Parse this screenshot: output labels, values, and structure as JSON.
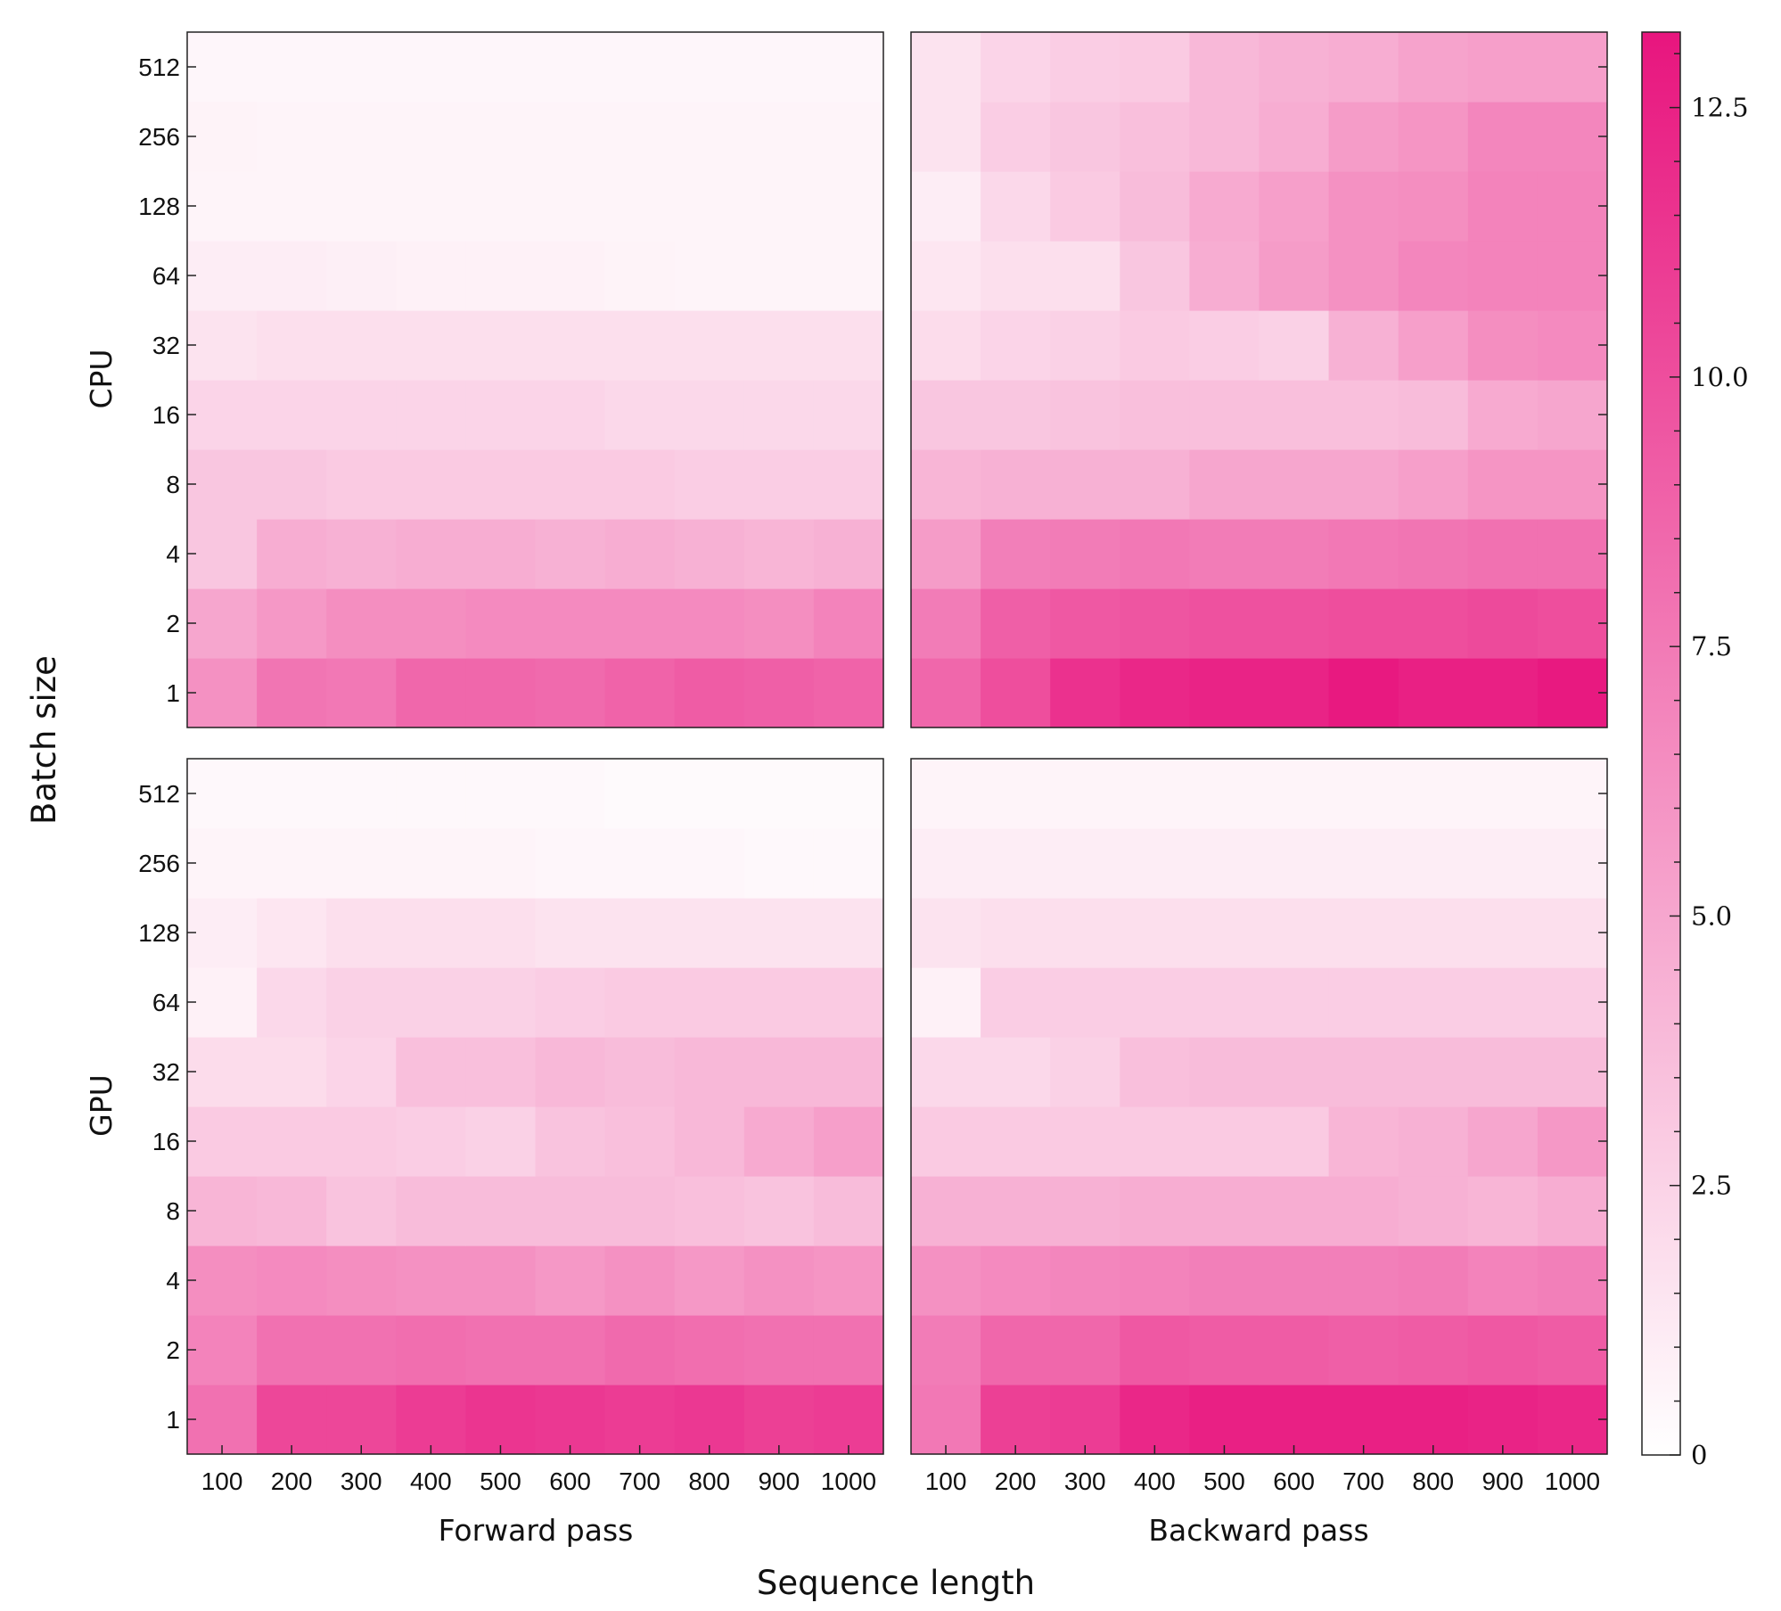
{
  "chart_data": {
    "type": "heatmap",
    "x_label": "Sequence length",
    "y_label": "Batch size",
    "column_labels": [
      "Forward pass",
      "Backward pass"
    ],
    "row_labels": [
      "CPU",
      "GPU"
    ],
    "x_categories": [
      "100",
      "200",
      "300",
      "400",
      "500",
      "600",
      "700",
      "800",
      "900",
      "1000"
    ],
    "y_categories": [
      "1",
      "2",
      "4",
      "8",
      "16",
      "32",
      "64",
      "128",
      "256",
      "512"
    ],
    "colorbar": {
      "min": 0,
      "max": 13.2,
      "ticks": [
        0,
        2.5,
        5.0,
        7.5,
        10.0,
        12.5
      ],
      "tick_labels": [
        "0",
        "2.5",
        "5.0",
        "7.5",
        "10.0",
        "12.5"
      ],
      "color_low": "#ffffff",
      "color_high": "#e8157e"
    },
    "panels": [
      {
        "row": "CPU",
        "column": "Forward pass",
        "values_by_batch": [
          [
            6.2,
            7.8,
            7.6,
            8.6,
            8.6,
            8.4,
            8.8,
            9.2,
            9.0,
            8.8
          ],
          [
            5.0,
            5.8,
            6.4,
            6.4,
            6.6,
            6.6,
            6.6,
            6.6,
            6.4,
            7.0
          ],
          [
            3.2,
            4.6,
            4.4,
            4.6,
            4.6,
            4.4,
            4.6,
            4.4,
            4.2,
            4.4
          ],
          [
            3.2,
            3.2,
            3.0,
            3.0,
            3.0,
            3.0,
            3.0,
            2.8,
            2.8,
            2.8
          ],
          [
            2.4,
            2.4,
            2.4,
            2.4,
            2.4,
            2.4,
            2.2,
            2.2,
            2.2,
            2.2
          ],
          [
            1.6,
            1.8,
            1.8,
            1.8,
            1.8,
            1.8,
            1.8,
            1.8,
            1.8,
            1.8
          ],
          [
            1.0,
            1.0,
            0.9,
            0.8,
            0.8,
            0.8,
            0.7,
            0.6,
            0.6,
            0.6
          ],
          [
            0.6,
            0.6,
            0.6,
            0.6,
            0.6,
            0.6,
            0.6,
            0.6,
            0.6,
            0.6
          ],
          [
            0.7,
            0.6,
            0.6,
            0.6,
            0.6,
            0.6,
            0.6,
            0.6,
            0.6,
            0.6
          ],
          [
            0.5,
            0.5,
            0.5,
            0.5,
            0.5,
            0.5,
            0.5,
            0.5,
            0.5,
            0.5
          ]
        ]
      },
      {
        "row": "CPU",
        "column": "Backward pass",
        "values_by_batch": [
          [
            8.6,
            10.0,
            11.6,
            12.2,
            12.4,
            12.4,
            13.0,
            12.6,
            12.6,
            13.0
          ],
          [
            7.4,
            9.0,
            9.4,
            9.6,
            9.8,
            9.8,
            10.0,
            10.0,
            10.2,
            10.0
          ],
          [
            5.6,
            7.2,
            7.4,
            7.6,
            7.4,
            7.4,
            7.6,
            7.8,
            8.0,
            8.0
          ],
          [
            4.2,
            4.4,
            4.4,
            4.4,
            5.0,
            5.0,
            5.0,
            5.4,
            6.0,
            6.0
          ],
          [
            3.2,
            3.2,
            3.4,
            3.6,
            3.6,
            3.6,
            3.6,
            3.8,
            4.8,
            5.0
          ],
          [
            2.0,
            2.4,
            2.6,
            3.0,
            2.8,
            2.6,
            4.4,
            5.4,
            6.4,
            6.6
          ],
          [
            1.4,
            1.8,
            1.8,
            3.2,
            4.6,
            5.6,
            6.2,
            6.8,
            7.0,
            7.0
          ],
          [
            1.0,
            2.2,
            3.0,
            3.8,
            4.8,
            5.4,
            6.2,
            6.4,
            7.0,
            7.0
          ],
          [
            1.6,
            2.8,
            3.2,
            3.6,
            4.0,
            4.6,
            5.6,
            6.0,
            6.8,
            6.8
          ],
          [
            1.6,
            2.4,
            2.8,
            3.0,
            4.0,
            4.4,
            4.6,
            5.2,
            5.4,
            5.4
          ]
        ]
      },
      {
        "row": "GPU",
        "column": "Forward pass",
        "values_by_batch": [
          [
            8.0,
            10.4,
            10.4,
            11.0,
            11.4,
            11.2,
            11.0,
            11.2,
            10.8,
            11.0
          ],
          [
            7.0,
            8.0,
            8.0,
            8.2,
            8.0,
            8.0,
            8.4,
            8.2,
            8.0,
            8.0
          ],
          [
            6.4,
            6.6,
            6.4,
            6.2,
            6.2,
            5.8,
            6.2,
            5.8,
            6.2,
            6.0
          ],
          [
            4.2,
            4.0,
            3.4,
            3.8,
            3.8,
            3.8,
            3.8,
            3.6,
            3.4,
            3.8
          ],
          [
            3.0,
            3.0,
            3.0,
            2.8,
            2.6,
            3.4,
            3.6,
            4.0,
            4.8,
            5.4
          ],
          [
            2.0,
            2.0,
            2.4,
            3.6,
            3.6,
            4.0,
            3.8,
            4.0,
            4.0,
            4.0
          ],
          [
            0.8,
            2.2,
            2.6,
            2.6,
            2.6,
            2.8,
            3.0,
            3.0,
            3.0,
            3.0
          ],
          [
            1.0,
            1.4,
            1.8,
            1.8,
            1.8,
            1.6,
            1.6,
            1.6,
            1.6,
            1.6
          ],
          [
            0.6,
            0.6,
            0.6,
            0.6,
            0.6,
            0.5,
            0.5,
            0.5,
            0.4,
            0.4
          ],
          [
            0.4,
            0.4,
            0.4,
            0.4,
            0.4,
            0.4,
            0.3,
            0.3,
            0.3,
            0.3
          ]
        ]
      },
      {
        "row": "GPU",
        "column": "Backward pass",
        "values_by_batch": [
          [
            7.6,
            10.8,
            11.0,
            12.2,
            12.6,
            12.6,
            12.6,
            12.6,
            12.4,
            12.2
          ],
          [
            7.4,
            8.6,
            8.6,
            9.4,
            9.2,
            9.2,
            9.0,
            9.2,
            9.4,
            9.2
          ],
          [
            6.2,
            6.6,
            6.8,
            7.0,
            7.2,
            7.2,
            7.2,
            7.4,
            7.0,
            7.2
          ],
          [
            4.4,
            4.4,
            4.4,
            4.6,
            4.6,
            4.6,
            4.6,
            4.4,
            4.2,
            4.6
          ],
          [
            3.0,
            3.0,
            3.0,
            3.0,
            3.0,
            3.0,
            4.2,
            4.4,
            5.0,
            5.8
          ],
          [
            2.2,
            2.2,
            2.6,
            3.6,
            3.8,
            3.8,
            3.8,
            3.8,
            3.8,
            3.8
          ],
          [
            0.8,
            2.8,
            2.8,
            2.8,
            2.8,
            2.8,
            2.8,
            2.8,
            2.8,
            2.8
          ],
          [
            1.6,
            1.8,
            1.8,
            1.8,
            1.8,
            1.8,
            1.8,
            1.8,
            1.8,
            1.8
          ],
          [
            1.0,
            1.0,
            1.0,
            1.0,
            1.0,
            1.0,
            1.0,
            1.0,
            1.0,
            1.0
          ],
          [
            0.6,
            0.6,
            0.6,
            0.6,
            0.6,
            0.6,
            0.6,
            0.6,
            0.6,
            0.6
          ]
        ]
      }
    ]
  }
}
